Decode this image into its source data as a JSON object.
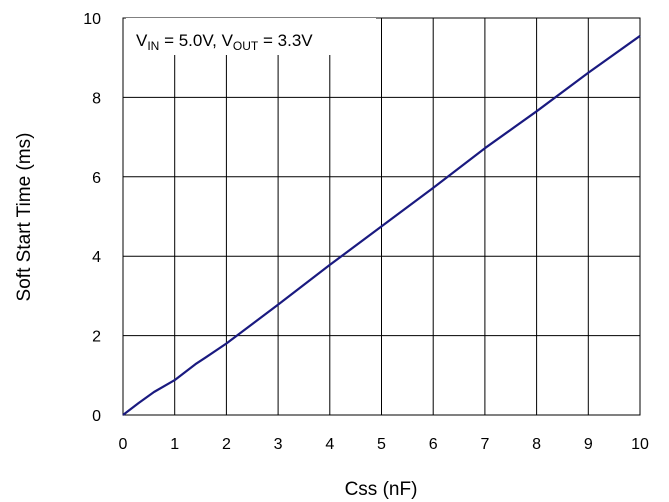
{
  "chart_data": {
    "type": "line",
    "xlabel": "Css (nF)",
    "ylabel": "Soft Start Time (ms)",
    "xlim": [
      0,
      10
    ],
    "ylim": [
      0,
      10
    ],
    "xticks": [
      "0",
      "1",
      "2",
      "3",
      "4",
      "5",
      "6",
      "7",
      "8",
      "9",
      "10"
    ],
    "yticks": [
      "0",
      "2",
      "4",
      "6",
      "8",
      "10"
    ],
    "grid": true,
    "annotation": {
      "v1": "V",
      "v1_sub": "IN",
      "v1_val": " = 5.0V, ",
      "v2": "V",
      "v2_sub": "OUT",
      "v2_val": " = 3.3V"
    },
    "series": [
      {
        "color": "#1a1a80",
        "x": [
          0,
          0.1,
          0.3,
          0.6,
          1.0,
          1.4,
          1.6,
          2.0,
          3.0,
          4.0,
          5.0,
          6.0,
          7.0,
          8.0,
          9.0,
          10.0
        ],
        "y": [
          0,
          0.1,
          0.3,
          0.58,
          0.88,
          1.28,
          1.45,
          1.8,
          2.78,
          3.78,
          4.75,
          5.72,
          6.72,
          7.65,
          8.62,
          9.55
        ]
      }
    ]
  }
}
